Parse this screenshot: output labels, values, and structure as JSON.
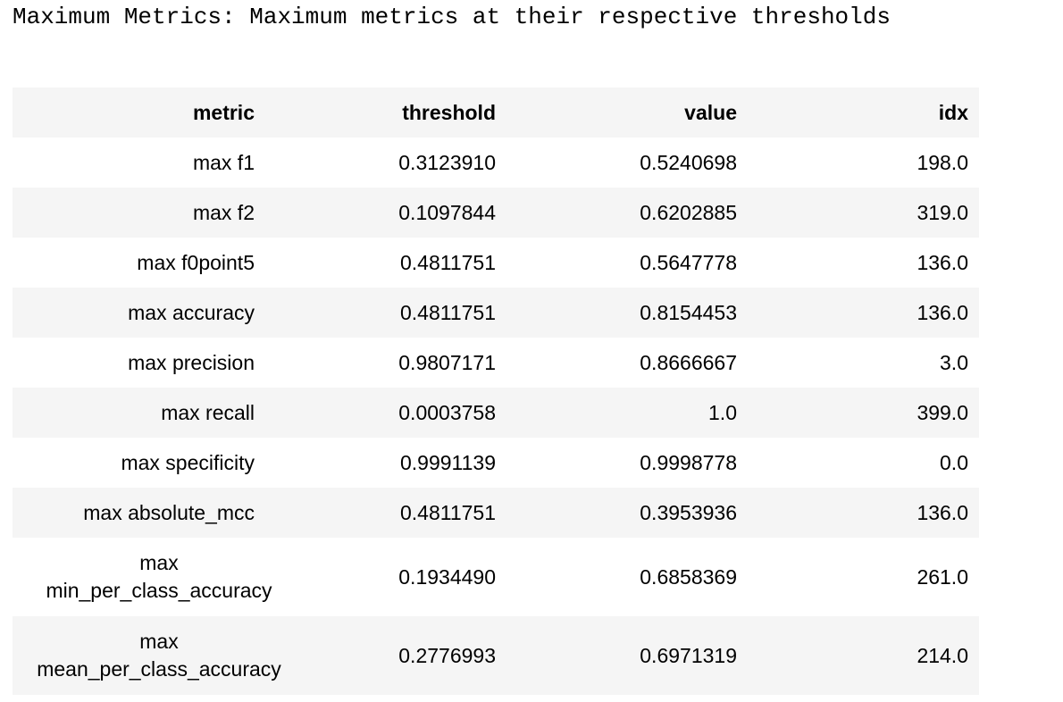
{
  "title": "Maximum Metrics: Maximum metrics at their respective thresholds",
  "table": {
    "headers": [
      "metric",
      "threshold",
      "value",
      "idx"
    ],
    "rows": [
      {
        "metric": "max f1",
        "threshold": "0.3123910",
        "value": "0.5240698",
        "idx": "198.0"
      },
      {
        "metric": "max f2",
        "threshold": "0.1097844",
        "value": "0.6202885",
        "idx": "319.0"
      },
      {
        "metric": "max f0point5",
        "threshold": "0.4811751",
        "value": "0.5647778",
        "idx": "136.0"
      },
      {
        "metric": "max accuracy",
        "threshold": "0.4811751",
        "value": "0.8154453",
        "idx": "136.0"
      },
      {
        "metric": "max precision",
        "threshold": "0.9807171",
        "value": "0.8666667",
        "idx": "3.0"
      },
      {
        "metric": "max recall",
        "threshold": "0.0003758",
        "value": "1.0",
        "idx": "399.0"
      },
      {
        "metric": "max specificity",
        "threshold": "0.9991139",
        "value": "0.9998778",
        "idx": "0.0"
      },
      {
        "metric": "max absolute_mcc",
        "threshold": "0.4811751",
        "value": "0.3953936",
        "idx": "136.0"
      },
      {
        "metric_line1": "max",
        "metric_line2": "min_per_class_accuracy",
        "threshold": "0.1934490",
        "value": "0.6858369",
        "idx": "261.0"
      },
      {
        "metric_line1": "max",
        "metric_line2": "mean_per_class_accuracy",
        "threshold": "0.2776993",
        "value": "0.6971319",
        "idx": "214.0"
      }
    ]
  }
}
